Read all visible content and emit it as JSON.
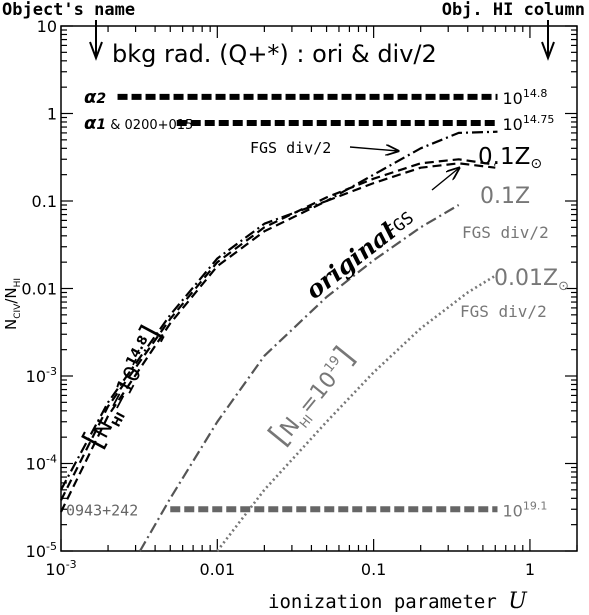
{
  "chart_data": {
    "type": "line",
    "xlabel": "ionization parameter U",
    "ylabel": "N_CIV/N_HI",
    "xscale": "log",
    "yscale": "log",
    "xlim": [
      0.001,
      2
    ],
    "ylim": [
      1e-05,
      10
    ],
    "x_ticks": [
      {
        "v": 0.001,
        "base": "10",
        "exp": "-3"
      },
      {
        "v": 0.01,
        "text": "0.01"
      },
      {
        "v": 0.1,
        "text": "0.1"
      },
      {
        "v": 1,
        "text": "1"
      }
    ],
    "y_ticks": [
      {
        "v": 1e-05,
        "base": "10",
        "exp": "-5"
      },
      {
        "v": 0.0001,
        "base": "10",
        "exp": "-4"
      },
      {
        "v": 0.001,
        "base": "10",
        "exp": "-3"
      },
      {
        "v": 0.01,
        "text": "0.01"
      },
      {
        "v": 0.1,
        "text": "0.1"
      },
      {
        "v": 1,
        "text": "1"
      },
      {
        "v": 10,
        "text": "10"
      }
    ],
    "title": "bkg rad. (Q+*) : ori & div/2",
    "header_left": "Object's name",
    "header_right": "Obj. HI column",
    "series": [
      {
        "style": "dash-dot",
        "color": "#000000",
        "x": [
          0.001,
          0.002,
          0.005,
          0.01,
          0.02,
          0.05,
          0.1,
          0.2,
          0.35,
          0.62
        ],
        "y": [
          5e-05,
          0.0005,
          0.005,
          0.022,
          0.055,
          0.1,
          0.2,
          0.4,
          0.6,
          0.62
        ]
      },
      {
        "style": "dashed",
        "color": "#000000",
        "x": [
          0.001,
          0.002,
          0.005,
          0.01,
          0.02,
          0.05,
          0.1,
          0.2,
          0.35,
          0.6
        ],
        "y": [
          2.8e-05,
          0.00035,
          0.004,
          0.018,
          0.045,
          0.1,
          0.16,
          0.24,
          0.27,
          0.24
        ]
      },
      {
        "style": "dashed",
        "color": "#000000",
        "x": [
          0.001,
          0.002,
          0.005,
          0.01,
          0.02,
          0.05,
          0.1,
          0.2,
          0.35,
          0.6
        ],
        "y": [
          3.8e-05,
          0.00045,
          0.0045,
          0.02,
          0.05,
          0.11,
          0.18,
          0.27,
          0.3,
          0.26
        ]
      },
      {
        "style": "dash-dot",
        "color": "#555555",
        "x": [
          0.0032,
          0.005,
          0.01,
          0.02,
          0.05,
          0.1,
          0.2,
          0.35
        ],
        "y": [
          1e-05,
          4e-05,
          0.0003,
          0.0017,
          0.008,
          0.021,
          0.05,
          0.09
        ]
      },
      {
        "style": "dotted",
        "color": "#777777",
        "x": [
          0.01,
          0.02,
          0.05,
          0.1,
          0.2,
          0.4,
          0.6
        ],
        "y": [
          1e-05,
          5e-05,
          0.0003,
          0.0011,
          0.0035,
          0.009,
          0.014
        ]
      }
    ],
    "hlines": [
      {
        "label_main": "α",
        "label_sub": "2",
        "label_extra": "",
        "y": 1.55,
        "x0": 0.0023,
        "x1": 0.62,
        "color": "#000000",
        "value_base": "10",
        "value_exp": "14.8"
      },
      {
        "label_main": "α",
        "label_sub": "1",
        "label_extra": " & 0200+015",
        "y": 0.78,
        "x0": 0.0055,
        "x1": 0.62,
        "color": "#000000",
        "value_base": "10",
        "value_exp": "14.75"
      },
      {
        "label_main": "0943+242",
        "label_sub": "",
        "label_extra": "",
        "y": 3e-05,
        "x0": 0.005,
        "x1": 0.62,
        "color": "#666666",
        "value_base": "10",
        "value_exp": "19.1"
      }
    ],
    "annotations": {
      "fgs_div2": "FGS div/2",
      "original": "original",
      "fgs": "FGS",
      "z01_dark": "0.1Z",
      "z01_grey": "0.1Z",
      "fgs_div2_b": "FGS div/2",
      "z001": "0.01Z",
      "fgs_div2_c": "FGS div/2",
      "nhi_148_exp": "14.8",
      "nhi_19_exp": "19"
    },
    "grid": false,
    "legend": "none"
  }
}
